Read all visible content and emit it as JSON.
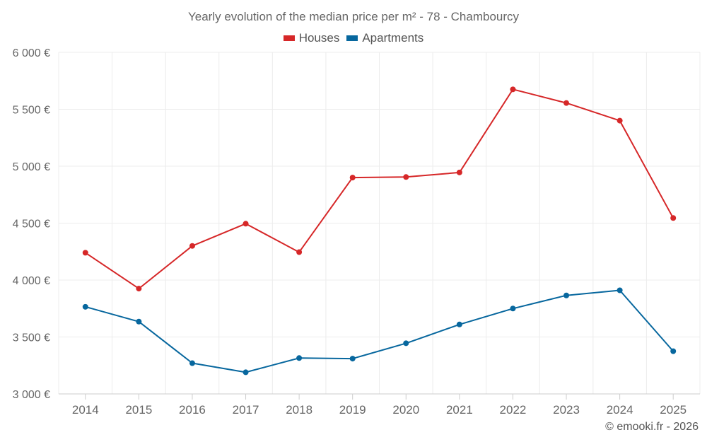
{
  "chart_data": {
    "type": "line",
    "title": "Yearly evolution of the median price per m² - 78 - Chambourcy",
    "categories": [
      "2014",
      "2015",
      "2016",
      "2017",
      "2018",
      "2019",
      "2020",
      "2021",
      "2022",
      "2023",
      "2024",
      "2025"
    ],
    "series": [
      {
        "name": "Houses",
        "color": "#d62728",
        "values": [
          4240,
          3925,
          4300,
          4495,
          4245,
          4900,
          4905,
          4945,
          5675,
          5555,
          5400,
          4545
        ]
      },
      {
        "name": "Apartments",
        "color": "#07679e",
        "values": [
          3765,
          3635,
          3270,
          3190,
          3315,
          3310,
          3445,
          3610,
          3750,
          3865,
          3910,
          3375
        ]
      }
    ],
    "ylim": [
      3000,
      6000
    ],
    "yticks": [
      {
        "value": 3000,
        "label": "3 000 €"
      },
      {
        "value": 3500,
        "label": "3 500 €"
      },
      {
        "value": 4000,
        "label": "4 000 €"
      },
      {
        "value": 4500,
        "label": "4 500 €"
      },
      {
        "value": 5000,
        "label": "5 000 €"
      },
      {
        "value": 5500,
        "label": "5 500 €"
      },
      {
        "value": 6000,
        "label": "6 000 €"
      }
    ],
    "xlabel": "",
    "ylabel": "",
    "grid": true,
    "legend_position": "top-center"
  },
  "credit": "© emooki.fr - 2026"
}
